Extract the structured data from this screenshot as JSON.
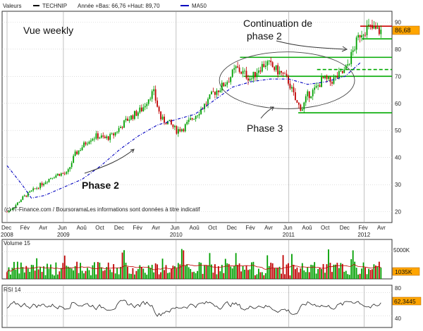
{
  "header": {
    "valeurs_label": "Valeurs",
    "ticker": "TECHNIP",
    "range_text": "Année +Bas: 66,76 +Haut: 89,70",
    "ma_label": "MA50"
  },
  "main_panel": {
    "view_label": "Vue weekly",
    "annotations": {
      "continuation": "Continuation de phase 2",
      "phase2": "Phase 2",
      "phase3": "Phase 3"
    },
    "current_price": "86,68",
    "credit": "(c) IT-Finance.com / BoursoramaLes informations sont données à titre indicatif"
  },
  "volume_panel": {
    "label": "Volume 15",
    "last_value": "1035K",
    "axis_label": "5000K"
  },
  "rsi_panel": {
    "label": "RSI 14",
    "last_value": "62,3445",
    "axis_labels": [
      "80",
      "40"
    ]
  },
  "colors": {
    "bull": "#00a000",
    "bear": "#c00000",
    "ma": "#0000c0",
    "support": "#00aa00",
    "resistance": "#cc0000",
    "price_badge": "#ffa500",
    "phase2_text": "#2eaa2e"
  },
  "chart_data": {
    "type": "candlestick",
    "title": "TECHNIP",
    "period": "weekly",
    "x_tick_labels": [
      "Dec",
      "Fév",
      "Avr",
      "Jun",
      "Aoû",
      "Oct",
      "Dec",
      "Fév",
      "Avr",
      "Jun",
      "Aoû",
      "Oct",
      "Dec",
      "Fév",
      "Avr",
      "Jun",
      "Aoû",
      "Oct",
      "Dec",
      "Fév",
      "Avr"
    ],
    "year_labels": [
      {
        "label": "2008",
        "index": 0
      },
      {
        "label": "2009",
        "index": 3
      },
      {
        "label": "2010",
        "index": 9
      },
      {
        "label": "2011",
        "index": 15
      },
      {
        "label": "2012",
        "index": 19
      }
    ],
    "y_ticks": [
      20,
      30,
      40,
      50,
      60,
      70,
      80,
      90
    ],
    "ylim": [
      16,
      94
    ],
    "price_path": [
      {
        "t": 0,
        "v": 20
      },
      {
        "t": 0.4,
        "v": 22
      },
      {
        "t": 0.8,
        "v": 25
      },
      {
        "t": 1.2,
        "v": 27
      },
      {
        "t": 1.6,
        "v": 29
      },
      {
        "t": 2.0,
        "v": 31
      },
      {
        "t": 2.4,
        "v": 33
      },
      {
        "t": 2.8,
        "v": 34
      },
      {
        "t": 3.2,
        "v": 34
      },
      {
        "t": 3.6,
        "v": 41
      },
      {
        "t": 4.0,
        "v": 44
      },
      {
        "t": 4.4,
        "v": 47
      },
      {
        "t": 4.8,
        "v": 48
      },
      {
        "t": 5.2,
        "v": 47
      },
      {
        "t": 5.6,
        "v": 48
      },
      {
        "t": 6.0,
        "v": 51
      },
      {
        "t": 6.4,
        "v": 54
      },
      {
        "t": 6.8,
        "v": 56
      },
      {
        "t": 7.2,
        "v": 58
      },
      {
        "t": 7.6,
        "v": 63
      },
      {
        "t": 7.8,
        "v": 64
      },
      {
        "t": 8.0,
        "v": 59
      },
      {
        "t": 8.2,
        "v": 54
      },
      {
        "t": 8.6,
        "v": 53
      },
      {
        "t": 9.0,
        "v": 50
      },
      {
        "t": 9.4,
        "v": 51
      },
      {
        "t": 9.8,
        "v": 54
      },
      {
        "t": 10.2,
        "v": 57
      },
      {
        "t": 10.6,
        "v": 60
      },
      {
        "t": 11.0,
        "v": 64
      },
      {
        "t": 11.4,
        "v": 66
      },
      {
        "t": 11.8,
        "v": 69
      },
      {
        "t": 12.2,
        "v": 73
      },
      {
        "t": 12.6,
        "v": 71
      },
      {
        "t": 13.0,
        "v": 69
      },
      {
        "t": 13.4,
        "v": 73
      },
      {
        "t": 13.8,
        "v": 75
      },
      {
        "t": 14.2,
        "v": 73
      },
      {
        "t": 14.6,
        "v": 71
      },
      {
        "t": 15.0,
        "v": 68
      },
      {
        "t": 15.4,
        "v": 60
      },
      {
        "t": 15.7,
        "v": 58
      },
      {
        "t": 16.0,
        "v": 63
      },
      {
        "t": 16.4,
        "v": 65
      },
      {
        "t": 16.8,
        "v": 69
      },
      {
        "t": 17.2,
        "v": 68
      },
      {
        "t": 17.6,
        "v": 70
      },
      {
        "t": 18.0,
        "v": 72
      },
      {
        "t": 18.4,
        "v": 79
      },
      {
        "t": 18.8,
        "v": 86
      },
      {
        "t": 19.2,
        "v": 88
      },
      {
        "t": 19.6,
        "v": 87
      },
      {
        "t": 19.9,
        "v": 86.68
      }
    ],
    "ma50": [
      {
        "t": 0,
        "v": 37
      },
      {
        "t": 0.8,
        "v": 30
      },
      {
        "t": 1.3,
        "v": 25
      },
      {
        "t": 2.0,
        "v": 26
      },
      {
        "t": 3.0,
        "v": 29
      },
      {
        "t": 4.0,
        "v": 32
      },
      {
        "t": 5.0,
        "v": 37
      },
      {
        "t": 6.0,
        "v": 43
      },
      {
        "t": 7.0,
        "v": 48
      },
      {
        "t": 8.0,
        "v": 52
      },
      {
        "t": 9.0,
        "v": 54
      },
      {
        "t": 10.0,
        "v": 56
      },
      {
        "t": 11.0,
        "v": 61
      },
      {
        "t": 12.0,
        "v": 66
      },
      {
        "t": 13.0,
        "v": 68
      },
      {
        "t": 14.0,
        "v": 69
      },
      {
        "t": 15.0,
        "v": 69
      },
      {
        "t": 16.0,
        "v": 67
      },
      {
        "t": 17.0,
        "v": 68
      },
      {
        "t": 18.0,
        "v": 70
      },
      {
        "t": 18.8,
        "v": 75
      }
    ],
    "horizontal_levels": [
      {
        "v": 88.5,
        "kind": "resistance",
        "from": 18.8
      },
      {
        "v": 83.8,
        "kind": "support",
        "from": 18.9
      },
      {
        "v": 77.0,
        "kind": "support",
        "from": 12.4
      },
      {
        "v": 72.5,
        "kind": "support_dashed",
        "from": 16.5
      },
      {
        "v": 70.0,
        "kind": "support",
        "from": 12.6
      },
      {
        "v": 56.5,
        "kind": "support",
        "from": 15.5
      }
    ],
    "volume": {
      "ylim": [
        0,
        7000
      ],
      "ticks": [
        5000
      ],
      "last": 1035
    },
    "rsi": {
      "ylim": [
        20,
        90
      ],
      "ticks": [
        40,
        80
      ],
      "last": 62.3445
    }
  }
}
